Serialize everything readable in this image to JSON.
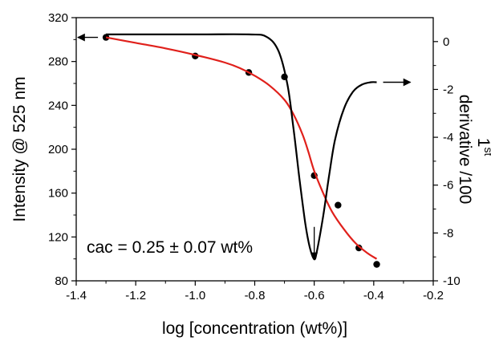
{
  "chart_data": {
    "type": "line",
    "xlabel": "log [concentration (wt%)]",
    "ylabel_left": "Intensity @ 525 nm",
    "ylabel_right_line1": "1",
    "ylabel_right_sup": "st",
    "ylabel_right_line2": "derivative /100",
    "xlim": [
      -1.4,
      -0.2
    ],
    "ylim_left": [
      80,
      320
    ],
    "ylim_right": [
      -10,
      1
    ],
    "xticks": [
      -1.4,
      -1.2,
      -1.0,
      -0.8,
      -0.6,
      -0.4,
      -0.2
    ],
    "xtick_labels": [
      "-1.4",
      "-1.2",
      "-1.0",
      "-0.8",
      "-0.6",
      "-0.4",
      "-0.2"
    ],
    "yticks_left": [
      80,
      120,
      160,
      200,
      240,
      280,
      320
    ],
    "ytick_labels_left": [
      "80",
      "120",
      "160",
      "200",
      "240",
      "280",
      "320"
    ],
    "yticks_right": [
      0,
      -2,
      -4,
      -6,
      -8,
      -10
    ],
    "ytick_labels_right": [
      "0",
      "-2",
      "-4",
      "-6",
      "-8",
      "-10"
    ],
    "series": [
      {
        "axis": "left",
        "style": "markers",
        "color": "#000000",
        "x": [
          -1.3,
          -1.0,
          -0.82,
          -0.7,
          -0.6,
          -0.52,
          -0.45,
          -0.39
        ],
        "y": [
          302,
          285,
          270,
          266,
          176,
          149,
          110,
          95
        ]
      },
      {
        "axis": "left",
        "style": "line",
        "color": "#e0201b",
        "x": [
          -1.3,
          -1.2,
          -1.1,
          -1.0,
          -0.9,
          -0.85,
          -0.8,
          -0.75,
          -0.7,
          -0.67,
          -0.64,
          -0.62,
          -0.6,
          -0.57,
          -0.54,
          -0.5,
          -0.46,
          -0.42,
          -0.39
        ],
        "y": [
          302,
          297,
          292,
          286,
          279,
          274,
          267,
          258,
          245,
          232,
          214,
          198,
          180,
          160,
          143,
          127,
          114,
          105,
          100
        ]
      },
      {
        "axis": "right",
        "style": "line",
        "color": "#000000",
        "x": [
          -1.3,
          -1.0,
          -0.82,
          -0.76,
          -0.72,
          -0.69,
          -0.67,
          -0.65,
          -0.63,
          -0.615,
          -0.6,
          -0.59,
          -0.57,
          -0.55,
          -0.53,
          -0.5,
          -0.47,
          -0.44,
          -0.41,
          -0.39
        ],
        "y": [
          0.3,
          0.3,
          0.3,
          0.2,
          -0.4,
          -1.8,
          -3.6,
          -5.7,
          -7.6,
          -8.6,
          -9.1,
          -8.7,
          -7.3,
          -5.6,
          -4.1,
          -2.8,
          -2.1,
          -1.8,
          -1.7,
          -1.7
        ]
      }
    ],
    "annotation": "cac = 0.25 ± 0.07 wt%",
    "annotation_point": {
      "x": -0.6,
      "y_left": 97
    },
    "left_arrow_point": {
      "x": -1.3,
      "y_left": 302
    },
    "right_arrow_point": {
      "x": -0.39,
      "y_right": -1.7
    }
  }
}
